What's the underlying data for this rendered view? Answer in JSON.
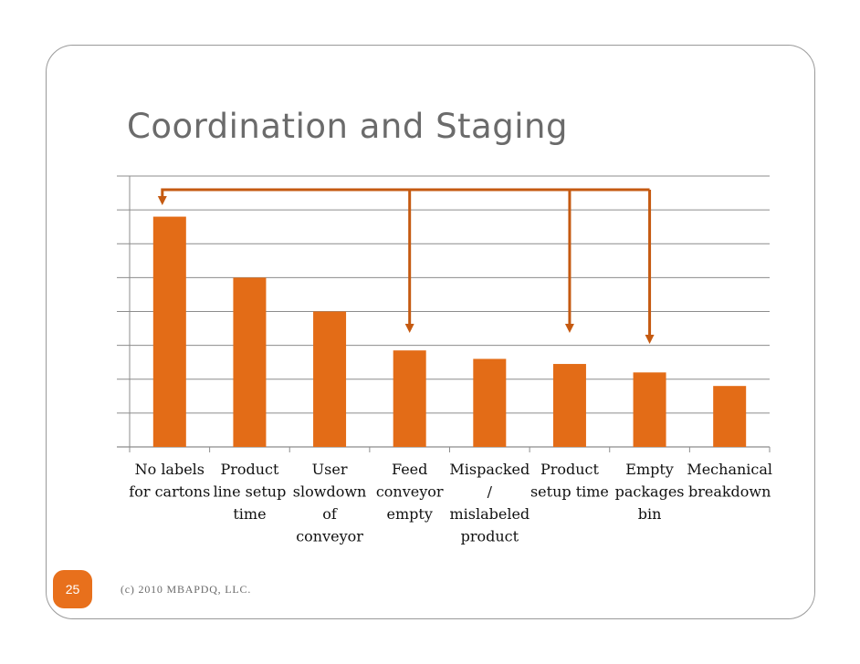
{
  "slide": {
    "title": "Coordination and Staging",
    "page_number": "25",
    "footer": "(c) 2010 MBAPDQ, LLC."
  },
  "colors": {
    "bar": "#e36c17",
    "arrow": "#c55a11",
    "grid": "#8c8c8c",
    "title": "#6b6b6b"
  },
  "chart_data": {
    "type": "bar",
    "categories": [
      [
        "No labels",
        "for cartons"
      ],
      [
        "Product",
        "line setup",
        "time"
      ],
      [
        "User",
        "slowdown",
        "of",
        "conveyor"
      ],
      [
        "Feed",
        "conveyor",
        "empty"
      ],
      [
        "Mispacked",
        "/",
        "mislabeled",
        "product"
      ],
      [
        "Product",
        "setup time"
      ],
      [
        "Empty",
        "packages",
        "bin"
      ],
      [
        "Mechanical",
        "breakdown"
      ]
    ],
    "values": [
      6.8,
      5.0,
      4.0,
      2.85,
      2.6,
      2.45,
      2.2,
      1.8
    ],
    "ylim": [
      0,
      8
    ],
    "grid": true,
    "y_tick_labels_shown": false,
    "annotations": [
      {
        "type": "arrow",
        "from_category": 7,
        "to_category": 1,
        "direction": "left"
      },
      {
        "type": "arrow",
        "from_category": 1,
        "to_category": 4,
        "direction": "down"
      },
      {
        "type": "arrow",
        "from_category": 1,
        "to_category": 6,
        "direction": "down"
      },
      {
        "type": "arrow",
        "from_category": 1,
        "to_category": 7,
        "direction": "down"
      }
    ]
  }
}
